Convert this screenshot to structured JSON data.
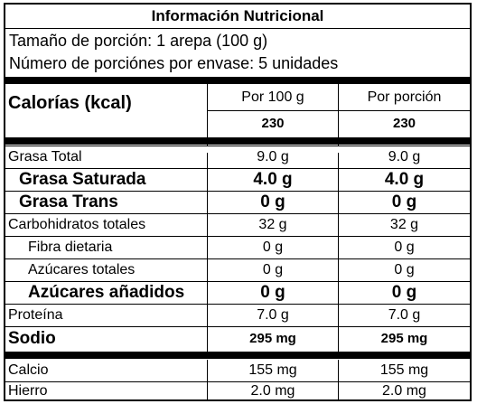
{
  "label": {
    "title": "Información Nutricional",
    "serving_size": "Tamaño de porción: 1 arepa (100 g)",
    "servings_per_container": "Número de porciónes por envase: 5 unidades",
    "calories_label": "Calorías (kcal)",
    "col_per_100g": "Por 100 g",
    "col_per_serving": "Por porción",
    "calories_per_100g": "230",
    "calories_per_serving": "230",
    "rows": [
      {
        "name": "Grasa Total",
        "per_100g": "9.0 g",
        "per_serving": "9.0 g"
      },
      {
        "name": "Grasa Saturada",
        "per_100g": "4.0 g",
        "per_serving": "4.0 g"
      },
      {
        "name": "Grasa Trans",
        "per_100g": "0 g",
        "per_serving": "0 g"
      },
      {
        "name": "Carbohidratos totales",
        "per_100g": "32 g",
        "per_serving": "32 g"
      },
      {
        "name": "Fibra dietaria",
        "per_100g": "0 g",
        "per_serving": "0 g"
      },
      {
        "name": "Azúcares totales",
        "per_100g": "0 g",
        "per_serving": "0 g"
      },
      {
        "name": "Azúcares añadidos",
        "per_100g": "0 g",
        "per_serving": "0 g"
      },
      {
        "name": "Proteína",
        "per_100g": "7.0 g",
        "per_serving": "7.0 g"
      },
      {
        "name": "Sodio",
        "per_100g": "295 mg",
        "per_serving": "295 mg"
      },
      {
        "name": "Calcio",
        "per_100g": "155 mg",
        "per_serving": "155 mg"
      },
      {
        "name": "Hierro",
        "per_100g": "2.0 mg",
        "per_serving": "2.0 mg"
      }
    ]
  }
}
